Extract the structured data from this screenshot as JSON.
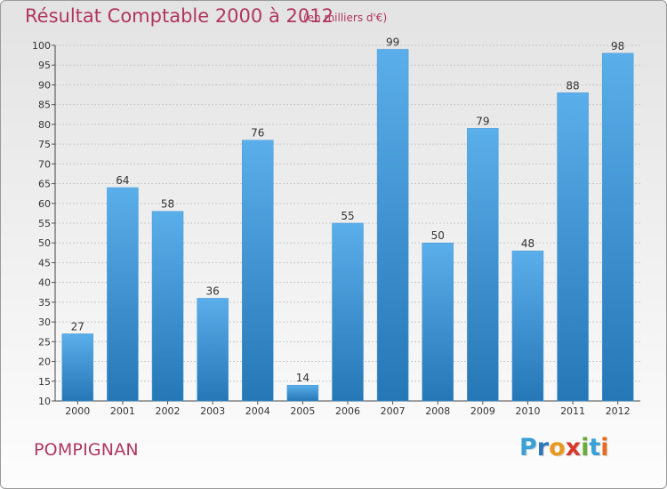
{
  "title": "Résultat Comptable 2000 à 2012",
  "unit": "(en milliers d'€)",
  "place": "POMPIGNAN",
  "logo": {
    "letters": [
      "P",
      "r",
      "o",
      "x",
      "i",
      "t",
      "i"
    ],
    "colors": [
      "#3aa0d8",
      "#2f77b8",
      "#e89a1e",
      "#d63a2c",
      "#6aab3a",
      "#3aa0d8",
      "#e86a1e"
    ]
  },
  "colors": {
    "bar_light": "#5aaeea",
    "bar_dark": "#2577b5",
    "text": "#b0365e"
  },
  "chart_data": {
    "type": "bar",
    "categories": [
      "2000",
      "2001",
      "2002",
      "2003",
      "2004",
      "2005",
      "2006",
      "2007",
      "2008",
      "2009",
      "2010",
      "2011",
      "2012"
    ],
    "values": [
      27,
      64,
      58,
      36,
      76,
      14,
      55,
      99,
      50,
      79,
      48,
      88,
      98
    ],
    "ylim": [
      10,
      100
    ],
    "yticks": [
      10,
      15,
      20,
      25,
      30,
      35,
      40,
      45,
      50,
      55,
      60,
      65,
      70,
      75,
      80,
      85,
      90,
      95,
      100
    ],
    "grid": true
  }
}
